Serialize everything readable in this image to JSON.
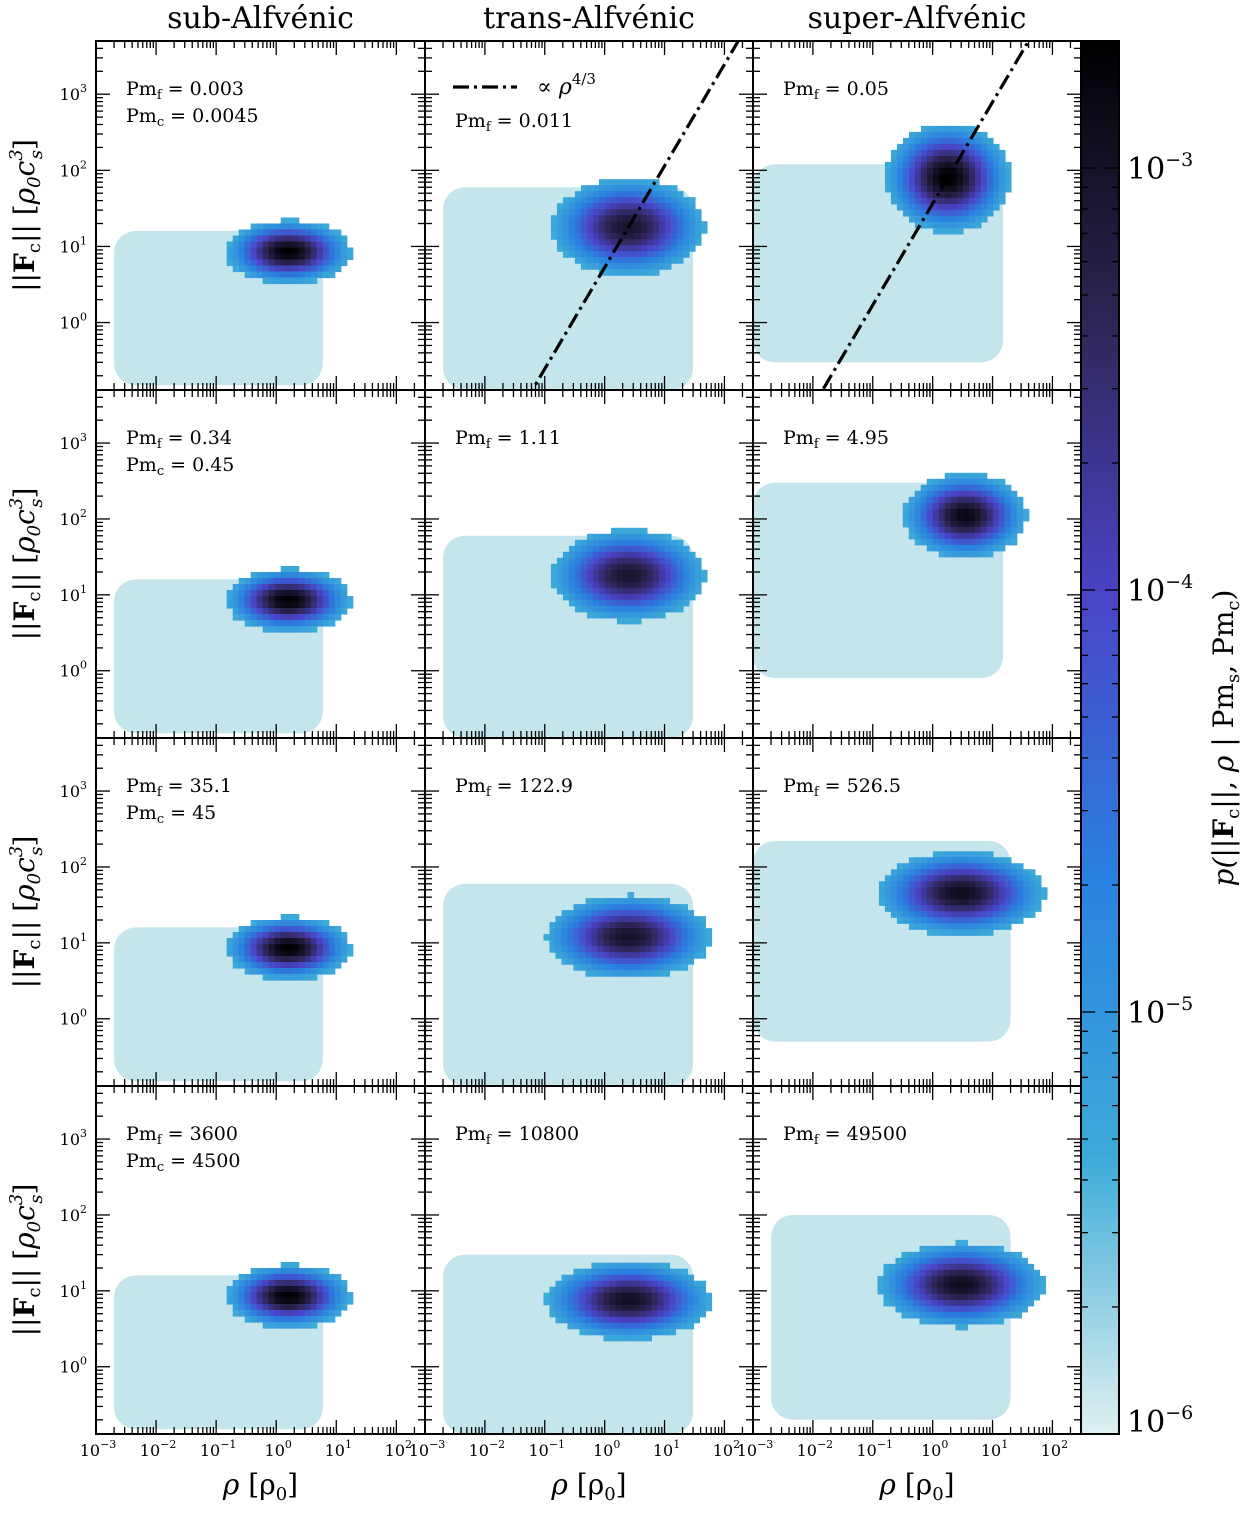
{
  "colors": {
    "cmap": [
      "#e0f0f0",
      "#3caad8",
      "#2a80e0",
      "#4a44c8",
      "#2e2555",
      "#000000"
    ],
    "line": "#000000"
  },
  "chart_data": {
    "type": "heatmap",
    "layout": {
      "rows": 4,
      "cols": 3
    },
    "column_titles": [
      "sub-Alfvénic",
      "trans-Alfvénic",
      "super-Alfvénic"
    ],
    "x_axis": {
      "label_parts": [
        "ρ",
        "[ρ",
        "0",
        "]"
      ],
      "scale": "log",
      "range": [
        0.001,
        300
      ],
      "ticks": [
        {
          "base": "10",
          "exp": "−3",
          "value": 0.001
        },
        {
          "base": "10",
          "exp": "−2",
          "value": 0.01
        },
        {
          "base": "10",
          "exp": "−1",
          "value": 0.1
        },
        {
          "base": "10",
          "exp": "0",
          "value": 1
        },
        {
          "base": "10",
          "exp": "1",
          "value": 10
        },
        {
          "base": "10",
          "exp": "2",
          "value": 100
        }
      ]
    },
    "y_axis": {
      "label_parts": [
        "||",
        "F",
        "c",
        "||",
        "[",
        "ρ",
        "0",
        "c",
        "3",
        "s",
        "]"
      ],
      "scale": "log",
      "range": [
        0.13,
        5000
      ],
      "ticks": [
        {
          "base": "10",
          "exp": "0",
          "value": 1
        },
        {
          "base": "10",
          "exp": "1",
          "value": 10
        },
        {
          "base": "10",
          "exp": "2",
          "value": 100
        },
        {
          "base": "10",
          "exp": "3",
          "value": 1000
        }
      ]
    },
    "colorbar": {
      "label": "p(||Fc||, ρ | Pms, Pmc)",
      "label_parts": [
        "p(||",
        "F",
        "c",
        "||, ",
        "ρ",
        " | Pm",
        "s",
        ", Pm",
        "c",
        ")"
      ],
      "scale": "log",
      "range": [
        1e-06,
        0.002
      ],
      "ticks": [
        {
          "base": "10",
          "exp": "−3",
          "value": 0.001
        },
        {
          "base": "10",
          "exp": "−4",
          "value": 0.0001
        },
        {
          "base": "10",
          "exp": "−5",
          "value": 1e-05
        },
        {
          "base": "10",
          "exp": "−6",
          "value": 1e-06
        }
      ]
    },
    "reference_line": {
      "legend_label": "∝ ρ",
      "legend_exp": "4/3",
      "slope": 1.3333,
      "panels": [
        [
          0,
          1
        ],
        [
          0,
          2
        ]
      ]
    },
    "panels": [
      [
        {
          "annotations": [
            {
              "sym": "Pm",
              "sub": "f",
              "value": "= 0.003"
            },
            {
              "sym": "Pm",
              "sub": "c",
              "value": "= 0.0045"
            }
          ],
          "peak": {
            "rho": 1.6,
            "F": 8.5
          },
          "peak_pdf": 0.002,
          "spread": {
            "x": 0.55,
            "y": 0.22
          },
          "bg_x_range": [
            0.002,
            6
          ],
          "bg_y_range": [
            0.15,
            16
          ],
          "core_x_range": [
            0.15,
            40
          ],
          "core_y_range": [
            0.5,
            24
          ]
        },
        {
          "annotations": [
            {
              "sym": "Pm",
              "sub": "f",
              "value": "= 0.011"
            }
          ],
          "peak": {
            "rho": 2.5,
            "F": 18
          },
          "peak_pdf": 0.0009,
          "spread": {
            "x": 0.7,
            "y": 0.35
          },
          "bg_x_range": [
            0.002,
            30
          ],
          "bg_y_range": [
            0.13,
            60
          ],
          "core_x_range": [
            0.04,
            130
          ],
          "core_y_range": [
            0.6,
            110
          ]
        },
        {
          "annotations": [
            {
              "sym": "Pm",
              "sub": "f",
              "value": "= 0.05"
            }
          ],
          "peak": {
            "rho": 1.8,
            "F": 80
          },
          "peak_pdf": 0.002,
          "spread": {
            "x": 0.55,
            "y": 0.38
          },
          "bg_x_range": [
            0.001,
            15
          ],
          "bg_y_range": [
            0.3,
            120
          ],
          "core_x_range": [
            0.04,
            40
          ],
          "core_y_range": [
            1.5,
            950
          ]
        }
      ],
      [
        {
          "annotations": [
            {
              "sym": "Pm",
              "sub": "f",
              "value": "= 0.34"
            },
            {
              "sym": "Pm",
              "sub": "c",
              "value": "= 0.45"
            }
          ],
          "peak": {
            "rho": 1.6,
            "F": 8.5
          },
          "peak_pdf": 0.002,
          "spread": {
            "x": 0.55,
            "y": 0.22
          },
          "bg_x_range": [
            0.002,
            6
          ],
          "bg_y_range": [
            0.15,
            16
          ],
          "core_x_range": [
            0.15,
            40
          ],
          "core_y_range": [
            0.5,
            24
          ]
        },
        {
          "annotations": [
            {
              "sym": "Pm",
              "sub": "f",
              "value": "= 1.11"
            }
          ],
          "peak": {
            "rho": 2.5,
            "F": 18
          },
          "peak_pdf": 0.0009,
          "spread": {
            "x": 0.7,
            "y": 0.33
          },
          "bg_x_range": [
            0.002,
            30
          ],
          "bg_y_range": [
            0.13,
            60
          ],
          "core_x_range": [
            0.04,
            130
          ],
          "core_y_range": [
            0.8,
            110
          ]
        },
        {
          "annotations": [
            {
              "sym": "Pm",
              "sub": "f",
              "value": "= 4.95"
            }
          ],
          "peak": {
            "rho": 3.5,
            "F": 110
          },
          "peak_pdf": 0.0015,
          "spread": {
            "x": 0.55,
            "y": 0.3
          },
          "bg_x_range": [
            0.001,
            15
          ],
          "bg_y_range": [
            0.8,
            300
          ],
          "core_x_range": [
            0.05,
            60
          ],
          "core_y_range": [
            5,
            700
          ]
        }
      ],
      [
        {
          "annotations": [
            {
              "sym": "Pm",
              "sub": "f",
              "value": "= 35.1"
            },
            {
              "sym": "Pm",
              "sub": "c",
              "value": "= 45"
            }
          ],
          "peak": {
            "rho": 1.6,
            "F": 8.5
          },
          "peak_pdf": 0.002,
          "spread": {
            "x": 0.55,
            "y": 0.22
          },
          "bg_x_range": [
            0.002,
            6
          ],
          "bg_y_range": [
            0.15,
            16
          ],
          "core_x_range": [
            0.15,
            40
          ],
          "core_y_range": [
            0.5,
            24
          ]
        },
        {
          "annotations": [
            {
              "sym": "Pm",
              "sub": "f",
              "value": "= 122.9"
            }
          ],
          "peak": {
            "rho": 2.5,
            "F": 12
          },
          "peak_pdf": 0.001,
          "spread": {
            "x": 0.75,
            "y": 0.3
          },
          "bg_x_range": [
            0.002,
            30
          ],
          "bg_y_range": [
            0.13,
            60
          ],
          "core_x_range": [
            0.03,
            130
          ],
          "core_y_range": [
            0.8,
            200
          ]
        },
        {
          "annotations": [
            {
              "sym": "Pm",
              "sub": "f",
              "value": "= 526.5"
            }
          ],
          "peak": {
            "rho": 3,
            "F": 45
          },
          "peak_pdf": 0.0012,
          "spread": {
            "x": 0.75,
            "y": 0.3
          },
          "bg_x_range": [
            0.001,
            20
          ],
          "bg_y_range": [
            0.5,
            220
          ],
          "core_x_range": [
            0.02,
            200
          ],
          "core_y_range": [
            2,
            400
          ]
        }
      ],
      [
        {
          "annotations": [
            {
              "sym": "Pm",
              "sub": "f",
              "value": "= 3600"
            },
            {
              "sym": "Pm",
              "sub": "c",
              "value": "= 4500"
            }
          ],
          "peak": {
            "rho": 1.6,
            "F": 8.5
          },
          "peak_pdf": 0.002,
          "spread": {
            "x": 0.55,
            "y": 0.22
          },
          "bg_x_range": [
            0.002,
            6
          ],
          "bg_y_range": [
            0.15,
            16
          ],
          "core_x_range": [
            0.15,
            40
          ],
          "core_y_range": [
            0.5,
            24
          ]
        },
        {
          "annotations": [
            {
              "sym": "Pm",
              "sub": "f",
              "value": "= 10800"
            }
          ],
          "peak": {
            "rho": 2.5,
            "F": 7.5
          },
          "peak_pdf": 0.0011,
          "spread": {
            "x": 0.75,
            "y": 0.28
          },
          "bg_x_range": [
            0.002,
            30
          ],
          "bg_y_range": [
            0.13,
            30
          ],
          "core_x_range": [
            0.03,
            150
          ],
          "core_y_range": [
            0.8,
            70
          ]
        },
        {
          "annotations": [
            {
              "sym": "Pm",
              "sub": "f",
              "value": "= 49500"
            }
          ],
          "peak": {
            "rho": 3,
            "F": 12
          },
          "peak_pdf": 0.0012,
          "spread": {
            "x": 0.75,
            "y": 0.3
          },
          "bg_x_range": [
            0.002,
            20
          ],
          "bg_y_range": [
            0.2,
            100
          ],
          "core_x_range": [
            0.03,
            130
          ],
          "core_y_range": [
            0.8,
            140
          ]
        }
      ]
    ]
  }
}
